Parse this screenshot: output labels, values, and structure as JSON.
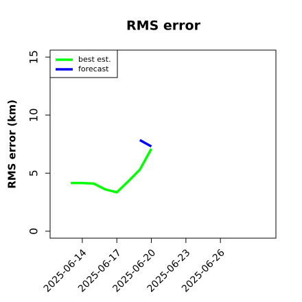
{
  "chart_data": {
    "type": "line",
    "title": "RMS error",
    "y_label": "RMS error (km)",
    "series": [
      {
        "name": "best est.",
        "color": "#00ff00",
        "x": [
          "2025-06-13",
          "2025-06-14",
          "2025-06-15",
          "2025-06-16",
          "2025-06-17",
          "2025-06-18",
          "2025-06-19",
          "2025-06-20"
        ],
        "values": [
          4.15,
          4.15,
          4.1,
          3.6,
          3.35,
          4.3,
          5.3,
          7.1
        ]
      },
      {
        "name": "forecast",
        "color": "#0000ff",
        "x": [
          "2025-06-19",
          "2025-06-20"
        ],
        "values": [
          7.85,
          7.3
        ]
      }
    ],
    "xlim": [
      "2025-06-11",
      "2025-07-01"
    ],
    "xticks": [
      "2025-06-14",
      "2025-06-17",
      "2025-06-20",
      "2025-06-23",
      "2025-06-26"
    ],
    "ylim": [
      -0.6,
      15.6
    ],
    "yticks": [
      0,
      5,
      10,
      15
    ],
    "legend": "top-left"
  }
}
